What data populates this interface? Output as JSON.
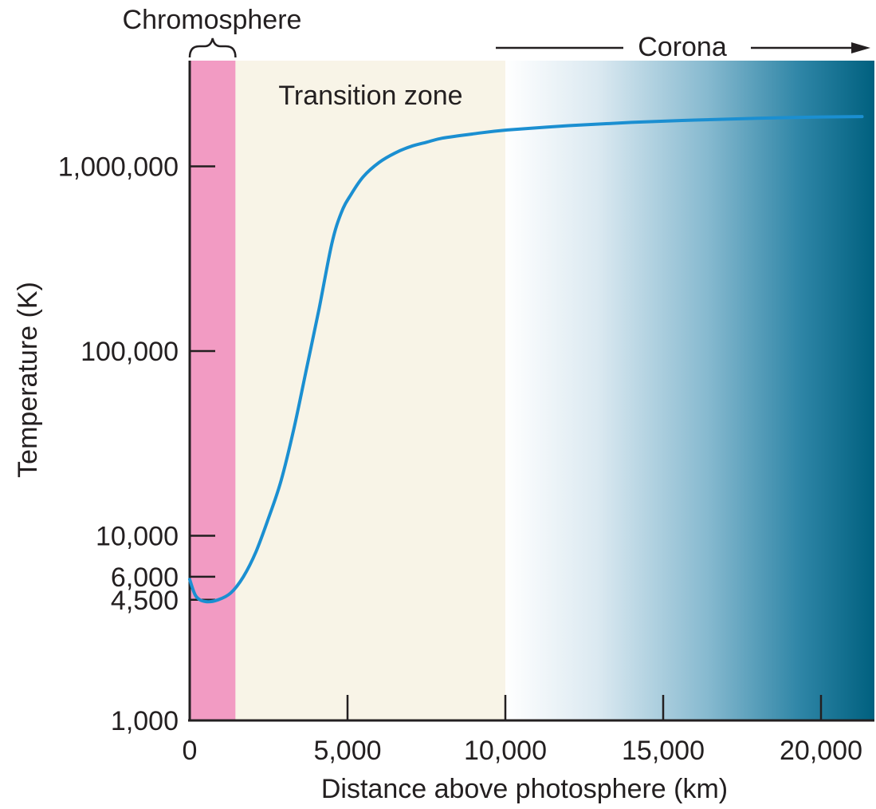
{
  "chart_data": {
    "type": "line",
    "title": "",
    "xlabel": "Distance above photosphere (km)",
    "ylabel": "Temperature (K)",
    "x_scale": "linear",
    "y_scale": "log",
    "xlim": [
      0,
      21700
    ],
    "ylim": [
      1000,
      3000000
    ],
    "x_ticks": [
      0,
      5000,
      10000,
      15000,
      20000
    ],
    "x_tick_labels": [
      "0",
      "5,000",
      "10,000",
      "15,000",
      "20,000"
    ],
    "y_ticks": [
      1000,
      4500,
      6000,
      10000,
      100000,
      1000000
    ],
    "y_tick_labels": [
      "1,000",
      "4,500",
      "6,000",
      "10,000",
      "100,000",
      "1,000,000"
    ],
    "series": [
      {
        "color": "#1b8fd1",
        "x": [
          0,
          200,
          500,
          900,
          1300,
          1700,
          2100,
          2500,
          2900,
          3300,
          3700,
          4100,
          4500,
          4800,
          5100,
          5500,
          6000,
          6500,
          7000,
          7500,
          8000,
          9000,
          10000,
          12000,
          14000,
          16000,
          18000,
          20000,
          21300
        ],
        "y": [
          5800,
          4700,
          4400,
          4500,
          4900,
          6000,
          8200,
          12500,
          20000,
          38000,
          80000,
          170000,
          380000,
          560000,
          700000,
          880000,
          1050000,
          1180000,
          1280000,
          1350000,
          1420000,
          1500000,
          1570000,
          1660000,
          1730000,
          1780000,
          1820000,
          1850000,
          1860000
        ]
      }
    ],
    "regions": [
      {
        "label": "Chromosphere",
        "x_range": [
          0,
          1450
        ],
        "color": "#f29bc3"
      },
      {
        "label": "Transition zone",
        "x_range": [
          1450,
          10000
        ],
        "color": "#f8f4e7"
      },
      {
        "label": "Corona",
        "x_range": [
          10000,
          21700
        ],
        "color": "#00607f"
      }
    ],
    "grid": false,
    "legend": "none"
  }
}
